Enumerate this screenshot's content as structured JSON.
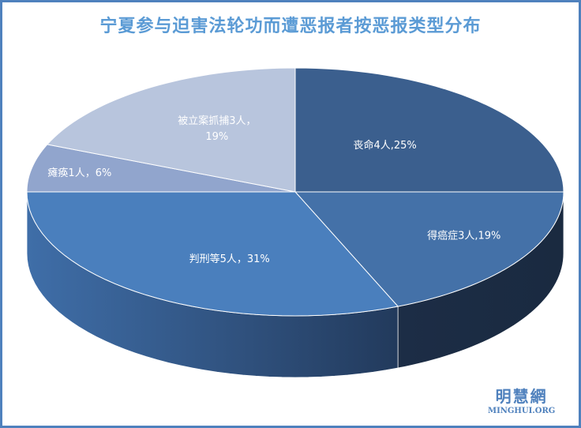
{
  "chart_data": {
    "type": "pie",
    "title": "宁夏参与迫害法轮功而遭恶报者按恶报类型分布",
    "slices": [
      {
        "name": "丧命",
        "count": 4,
        "percent": 25,
        "label": "丧命4人,25%",
        "color": "#3b5f8e"
      },
      {
        "name": "得癌症",
        "count": 3,
        "percent": 19,
        "label": "得癌症3人,19%",
        "color": "#4471a8"
      },
      {
        "name": "判刑等",
        "count": 5,
        "percent": 31,
        "label": "判刑等5人，31%",
        "color": "#4a7fbd"
      },
      {
        "name": "瘫痪",
        "count": 1,
        "percent": 6,
        "label": "瘫痪1人，6%",
        "color": "#91a5cd"
      },
      {
        "name": "被立案抓捕",
        "count": 3,
        "percent": 19,
        "label": "被立案抓捕3人，",
        "label2": "19%",
        "color": "#b8c5dd"
      }
    ]
  },
  "logo": {
    "cn": "明慧網",
    "en": "MINGHUI.ORG"
  }
}
